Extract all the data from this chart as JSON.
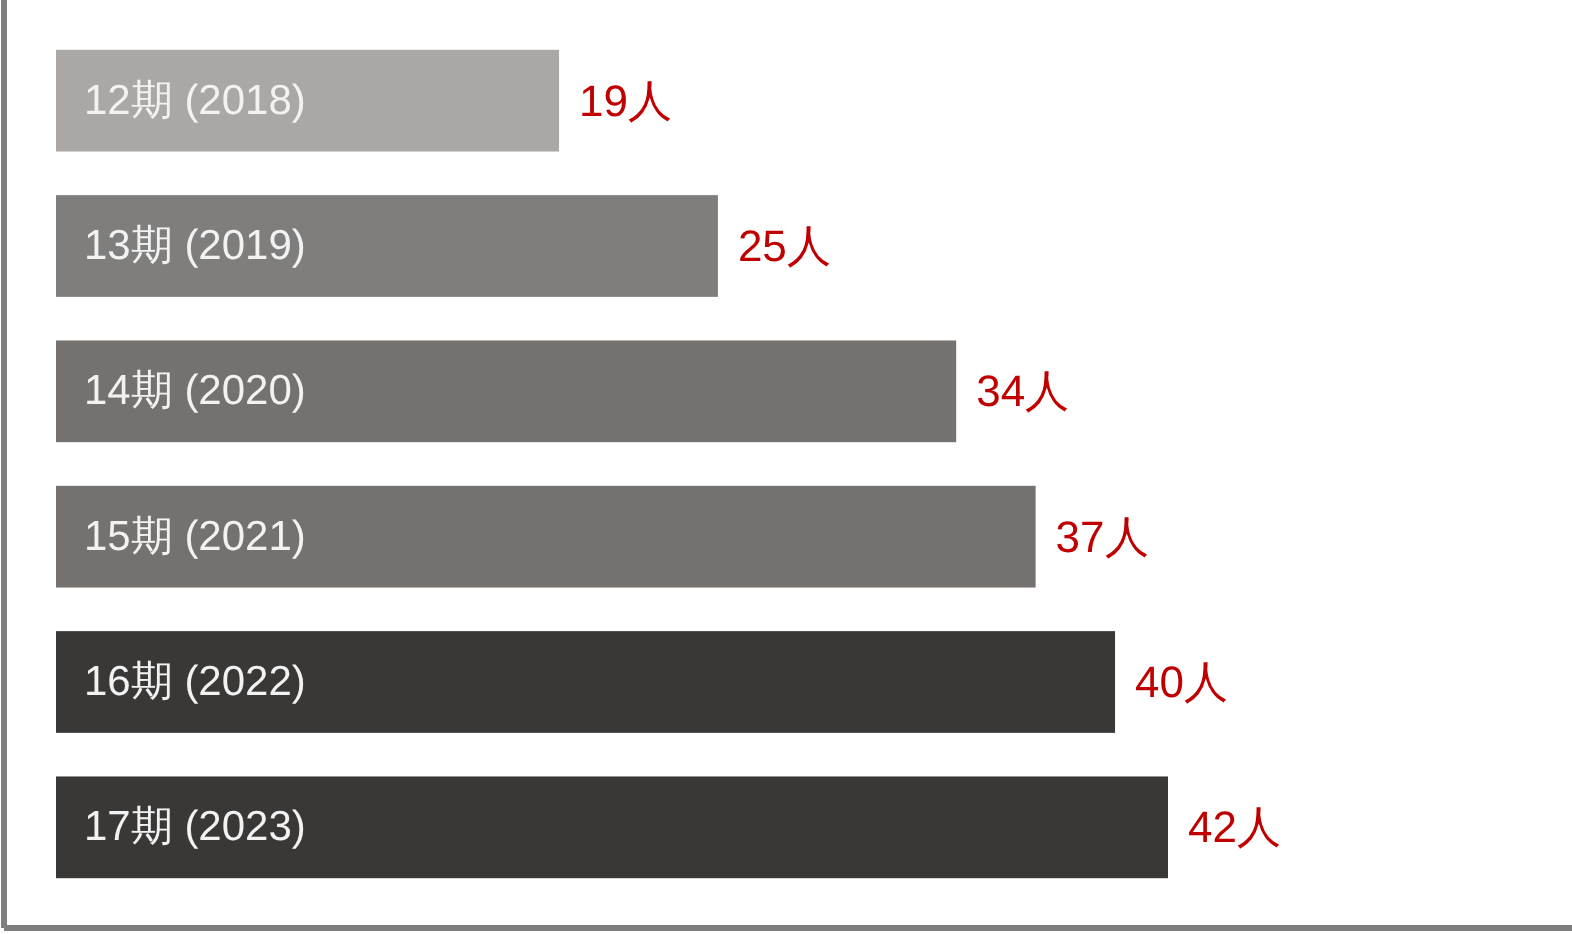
{
  "chart_data": {
    "type": "bar",
    "orientation": "horizontal",
    "categories": [
      "12期 (2018)",
      "13期 (2019)",
      "14期 (2020)",
      "15期 (2021)",
      "16期 (2022)",
      "17期 (2023)"
    ],
    "values": [
      19,
      25,
      34,
      37,
      40,
      42
    ],
    "colors": [
      "#aaa7a5",
      "#7f7e7d",
      "#75716f",
      "#75716f",
      "#3a3836",
      "#3a3836"
    ],
    "value_labels": [
      "19人",
      "25人",
      "34人",
      "37人",
      "40人",
      "42人"
    ],
    "grid": false
  }
}
